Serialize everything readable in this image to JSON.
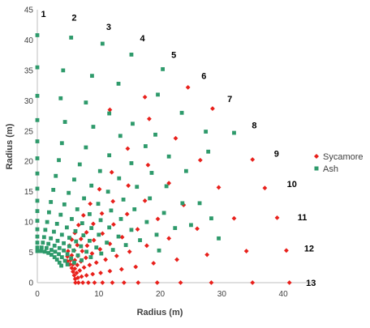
{
  "chart_data": {
    "type": "scatter",
    "xlabel": "Radius (m)",
    "ylabel": "Radius (m)",
    "xlim": [
      0,
      45
    ],
    "ylim": [
      0,
      45
    ],
    "xticks": [
      "0",
      "10",
      "20",
      "30",
      "40"
    ],
    "yticks": [
      "0",
      "5",
      "10",
      "15",
      "20",
      "25",
      "30",
      "35",
      "40",
      "45"
    ],
    "legend_position": "right",
    "ray_labels": [
      {
        "label": "1",
        "x": 1,
        "y": 44.3
      },
      {
        "label": "2",
        "x": 6,
        "y": 43.7
      },
      {
        "label": "3",
        "x": 11.6,
        "y": 42.2
      },
      {
        "label": "4",
        "x": 17.1,
        "y": 40.3
      },
      {
        "label": "5",
        "x": 22.2,
        "y": 37.6
      },
      {
        "label": "6",
        "x": 27.1,
        "y": 34.1
      },
      {
        "label": "7",
        "x": 31.3,
        "y": 30.3
      },
      {
        "label": "8",
        "x": 35.3,
        "y": 26
      },
      {
        "label": "9",
        "x": 38.9,
        "y": 21.3
      },
      {
        "label": "10",
        "x": 41.4,
        "y": 16.3
      },
      {
        "label": "11",
        "x": 43.1,
        "y": 10.8
      },
      {
        "label": "12",
        "x": 44.2,
        "y": 5.7
      },
      {
        "label": "13",
        "x": 44.5,
        "y": 0
      }
    ],
    "series": [
      {
        "name": "Sycamore",
        "color": "#e8201b",
        "marker": "diamond",
        "points": [
          [
            6.2,
            0
          ],
          [
            6.7,
            0
          ],
          [
            7.4,
            0
          ],
          [
            8.3,
            0
          ],
          [
            9.3,
            0
          ],
          [
            10.6,
            0
          ],
          [
            12.2,
            0
          ],
          [
            14.1,
            0
          ],
          [
            16.4,
            0
          ],
          [
            19.5,
            0
          ],
          [
            23.3,
            0
          ],
          [
            28.3,
            0
          ],
          [
            35,
            0
          ],
          [
            41,
            0
          ],
          [
            6.15,
            0.6
          ],
          [
            6.6,
            0.8
          ],
          [
            7.2,
            1.0
          ],
          [
            8.0,
            1.2
          ],
          [
            9.0,
            1.4
          ],
          [
            10.3,
            1.6
          ],
          [
            11.8,
            1.9
          ],
          [
            13.7,
            2.2
          ],
          [
            16.0,
            2.6
          ],
          [
            18.9,
            3.2
          ],
          [
            22.7,
            3.8
          ],
          [
            27.6,
            4.6
          ],
          [
            34.0,
            5.2
          ],
          [
            40.5,
            5.3
          ],
          [
            6.0,
            1.2
          ],
          [
            6.4,
            1.6
          ],
          [
            6.9,
            2.0
          ],
          [
            7.6,
            2.5
          ],
          [
            8.5,
            2.9
          ],
          [
            9.6,
            3.3
          ],
          [
            11.1,
            3.8
          ],
          [
            12.9,
            4.4
          ],
          [
            15.0,
            5.1
          ],
          [
            17.8,
            6.1
          ],
          [
            21.4,
            7.3
          ],
          [
            26.0,
            8.9
          ],
          [
            32.0,
            10.6
          ],
          [
            39.0,
            10.7
          ],
          [
            5.8,
            1.8
          ],
          [
            6.1,
            2.3
          ],
          [
            6.5,
            2.9
          ],
          [
            7.1,
            3.5
          ],
          [
            7.9,
            4.1
          ],
          [
            8.9,
            4.8
          ],
          [
            10.2,
            5.5
          ],
          [
            11.8,
            6.4
          ],
          [
            13.8,
            7.5
          ],
          [
            16.3,
            8.8
          ],
          [
            19.6,
            10.5
          ],
          [
            23.8,
            12.8
          ],
          [
            29.5,
            15.7
          ],
          [
            37.0,
            15.6
          ],
          [
            5.6,
            2.4
          ],
          [
            5.8,
            3.0
          ],
          [
            6.1,
            3.7
          ],
          [
            6.6,
            4.4
          ],
          [
            7.3,
            5.2
          ],
          [
            8.1,
            6.1
          ],
          [
            9.2,
            7.0
          ],
          [
            10.6,
            8.1
          ],
          [
            12.4,
            9.6
          ],
          [
            14.6,
            11.3
          ],
          [
            17.5,
            13.5
          ],
          [
            21.4,
            16.4
          ],
          [
            26.5,
            20.2
          ],
          [
            35.0,
            20.3
          ],
          [
            5.3,
            3.0
          ],
          [
            5.4,
            3.7
          ],
          [
            5.6,
            4.5
          ],
          [
            6.0,
            5.3
          ],
          [
            6.5,
            6.2
          ],
          [
            7.1,
            7.2
          ],
          [
            8.0,
            8.3
          ],
          [
            9.1,
            9.7
          ],
          [
            10.5,
            11.4
          ],
          [
            12.3,
            13.4
          ],
          [
            14.8,
            16.0
          ],
          [
            18.0,
            19.4
          ],
          [
            22.5,
            23.8
          ],
          [
            28.5,
            28.7
          ],
          [
            4.9,
            3.5
          ],
          [
            4.9,
            4.3
          ],
          [
            5.0,
            5.2
          ],
          [
            5.2,
            6.1
          ],
          [
            5.6,
            7.1
          ],
          [
            6.1,
            8.2
          ],
          [
            6.7,
            9.5
          ],
          [
            7.5,
            11.1
          ],
          [
            8.6,
            13.0
          ],
          [
            10.1,
            15.4
          ],
          [
            12.1,
            18.2
          ],
          [
            14.7,
            22.1
          ],
          [
            18.2,
            27.0
          ],
          [
            24.5,
            32.2
          ],
          [
            11.8,
            28.5
          ],
          [
            17.5,
            30.6
          ]
        ]
      },
      {
        "name": "Ash",
        "color": "#2e9a6b",
        "marker": "square",
        "points": [
          [
            0,
            5.2
          ],
          [
            0,
            5.8
          ],
          [
            0,
            6.6
          ],
          [
            0,
            7.6
          ],
          [
            0,
            8.8
          ],
          [
            0,
            10.2
          ],
          [
            0,
            11.8
          ],
          [
            0,
            13.5
          ],
          [
            0,
            15.5
          ],
          [
            0,
            18
          ],
          [
            0,
            20.5
          ],
          [
            0,
            23.3
          ],
          [
            0,
            26.8
          ],
          [
            0,
            30.8
          ],
          [
            0,
            35.5
          ],
          [
            0,
            40.8
          ],
          [
            0.6,
            5.2
          ],
          [
            0.7,
            5.8
          ],
          [
            0.9,
            6.6
          ],
          [
            1.1,
            7.5
          ],
          [
            1.3,
            8.7
          ],
          [
            1.6,
            10.0
          ],
          [
            1.9,
            11.6
          ],
          [
            2.2,
            13.3
          ],
          [
            2.6,
            15.3
          ],
          [
            3.0,
            17.6
          ],
          [
            3.5,
            20.2
          ],
          [
            4.0,
            23.0
          ],
          [
            4.5,
            26.5
          ],
          [
            3.8,
            30.4
          ],
          [
            4.2,
            35.0
          ],
          [
            5.5,
            40.4
          ],
          [
            1.2,
            5.1
          ],
          [
            1.5,
            5.7
          ],
          [
            1.8,
            6.4
          ],
          [
            2.2,
            7.3
          ],
          [
            2.7,
            8.4
          ],
          [
            3.2,
            9.7
          ],
          [
            3.8,
            11.2
          ],
          [
            4.4,
            12.9
          ],
          [
            5.1,
            14.8
          ],
          [
            6.0,
            17.0
          ],
          [
            6.9,
            19.5
          ],
          [
            7.9,
            22.3
          ],
          [
            9.1,
            25.7
          ],
          [
            7.9,
            29.7
          ],
          [
            8.9,
            34.1
          ],
          [
            10.6,
            39.4
          ],
          [
            1.8,
            4.9
          ],
          [
            2.3,
            5.4
          ],
          [
            2.8,
            6.1
          ],
          [
            3.3,
            6.9
          ],
          [
            4.0,
            7.9
          ],
          [
            4.8,
            9.1
          ],
          [
            5.6,
            10.5
          ],
          [
            6.5,
            12.1
          ],
          [
            7.6,
            13.9
          ],
          [
            8.8,
            16.0
          ],
          [
            10.2,
            18.4
          ],
          [
            11.7,
            21.0
          ],
          [
            13.5,
            24.2
          ],
          [
            11.7,
            27.9
          ],
          [
            13.2,
            32.8
          ],
          [
            15.3,
            37.6
          ],
          [
            2.3,
            4.6
          ],
          [
            2.9,
            5.1
          ],
          [
            3.6,
            5.7
          ],
          [
            4.3,
            6.5
          ],
          [
            5.2,
            7.4
          ],
          [
            6.2,
            8.5
          ],
          [
            7.3,
            9.8
          ],
          [
            8.5,
            11.3
          ],
          [
            9.9,
            13.0
          ],
          [
            11.5,
            15.0
          ],
          [
            13.3,
            17.2
          ],
          [
            15.3,
            19.7
          ],
          [
            17.6,
            22.5
          ],
          [
            15.5,
            26.2
          ],
          [
            19.6,
            31.0
          ],
          [
            20.4,
            35.2
          ],
          [
            2.8,
            4.2
          ],
          [
            3.5,
            4.7
          ],
          [
            4.3,
            5.3
          ],
          [
            5.2,
            6.0
          ],
          [
            6.3,
            6.8
          ],
          [
            7.5,
            7.8
          ],
          [
            8.8,
            9.0
          ],
          [
            10.3,
            10.3
          ],
          [
            12.0,
            11.9
          ],
          [
            14.0,
            13.7
          ],
          [
            16.2,
            15.8
          ],
          [
            18.6,
            18.1
          ],
          [
            21.4,
            20.8
          ],
          [
            19.2,
            24.4
          ],
          [
            23.5,
            28.0
          ],
          [
            27.4,
            24.9
          ],
          [
            3.2,
            3.8
          ],
          [
            4.0,
            4.2
          ],
          [
            4.9,
            4.7
          ],
          [
            5.9,
            5.3
          ],
          [
            7.1,
            6.0
          ],
          [
            8.5,
            6.9
          ],
          [
            10.0,
            7.9
          ],
          [
            11.7,
            9.1
          ],
          [
            13.6,
            10.5
          ],
          [
            15.8,
            12.1
          ],
          [
            18.3,
            13.9
          ],
          [
            21.0,
            15.9
          ],
          [
            24.2,
            18.4
          ],
          [
            27.8,
            21.6
          ],
          [
            32.0,
            24.7
          ],
          [
            3.6,
            3.3
          ],
          [
            4.5,
            3.6
          ],
          [
            5.5,
            4.0
          ],
          [
            6.6,
            4.5
          ],
          [
            8.0,
            5.1
          ],
          [
            9.6,
            5.8
          ],
          [
            11.3,
            6.6
          ],
          [
            13.2,
            7.6
          ],
          [
            15.3,
            8.7
          ],
          [
            17.8,
            10.0
          ],
          [
            20.6,
            11.5
          ],
          [
            23.6,
            13.1
          ],
          [
            26.4,
            13.1
          ],
          [
            29.5,
            7.3
          ],
          [
            3.9,
            2.8
          ],
          [
            4.9,
            3.0
          ],
          [
            6.0,
            3.3
          ],
          [
            7.2,
            3.7
          ],
          [
            8.7,
            4.2
          ],
          [
            10.4,
            4.8
          ],
          [
            12.3,
            5.4
          ],
          [
            14.4,
            6.2
          ],
          [
            16.7,
            7.0
          ],
          [
            19.4,
            7.9
          ],
          [
            22.4,
            9.0
          ],
          [
            25.0,
            9.5
          ],
          [
            28.3,
            10.6
          ],
          [
            19.8,
            5.3
          ]
        ]
      }
    ]
  }
}
